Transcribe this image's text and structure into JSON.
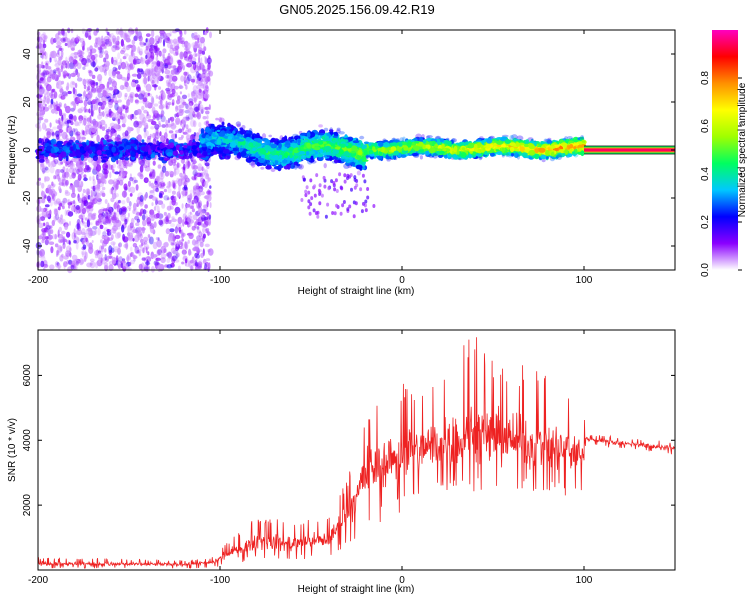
{
  "title": "GN05.2025.156.09.42.R19",
  "chart_data": [
    {
      "type": "heatmap",
      "title": "GN05.2025.156.09.42.R19",
      "xlabel": "Height of straight line (km)",
      "ylabel": "Frequency (Hz)",
      "xlim": [
        -200,
        150
      ],
      "ylim": [
        -50,
        50
      ],
      "xticks": [
        -200,
        -100,
        0,
        100
      ],
      "yticks": [
        -40,
        -20,
        0,
        20,
        40
      ],
      "colorbar": {
        "label": "Normalized spectral amplitude",
        "range": [
          0,
          1
        ],
        "ticks": [
          "0.0",
          "0.2",
          "0.4",
          "0.6",
          "0.8"
        ],
        "colormap": [
          "#ffffff",
          "#8a00ff",
          "#0000ff",
          "#00c8ff",
          "#00ff60",
          "#a0ff00",
          "#ffff00",
          "#ff9000",
          "#ff0000",
          "#ff00c0"
        ]
      },
      "features": {
        "noise_region_x": [
          -200,
          -105
        ],
        "signal_band_center_hz": 0,
        "signal_band_x": [
          -110,
          100
        ],
        "saturated_line_x": [
          100,
          150
        ],
        "saturated_line_hz": 0
      }
    },
    {
      "type": "line",
      "xlabel": "Height of straight line (km)",
      "ylabel": "SNR (10 * v/v)",
      "xlim": [
        -200,
        150
      ],
      "ylim": [
        0,
        7400
      ],
      "xticks": [
        -200,
        -100,
        0,
        100
      ],
      "yticks": [
        2000,
        4000,
        6000
      ],
      "color": "#ee2222",
      "envelope": {
        "x": [
          -200,
          -150,
          -120,
          -105,
          -95,
          -80,
          -60,
          -40,
          -30,
          -20,
          -10,
          0,
          10,
          20,
          30,
          40,
          50,
          60,
          70,
          80,
          90,
          100,
          101,
          110,
          120,
          130,
          140,
          150
        ],
        "min": [
          50,
          50,
          50,
          60,
          150,
          300,
          300,
          400,
          700,
          1200,
          1500,
          1800,
          2000,
          2200,
          2400,
          2400,
          2400,
          2400,
          2400,
          2300,
          2200,
          2000,
          3900,
          3800,
          3750,
          3700,
          3600,
          3550
        ],
        "max": [
          400,
          350,
          300,
          400,
          900,
          1700,
          1500,
          1700,
          2800,
          5200,
          5400,
          5800,
          5900,
          6300,
          6900,
          7300,
          6700,
          6300,
          6400,
          6100,
          5600,
          5000,
          4200,
          4150,
          4100,
          4050,
          4000,
          3950
        ],
        "mean": [
          200,
          180,
          170,
          220,
          500,
          900,
          800,
          950,
          1700,
          3000,
          3300,
          3600,
          3700,
          3900,
          4100,
          4200,
          4100,
          4000,
          3900,
          3800,
          3700,
          3600,
          4050,
          3980,
          3920,
          3870,
          3800,
          3750
        ]
      }
    }
  ]
}
